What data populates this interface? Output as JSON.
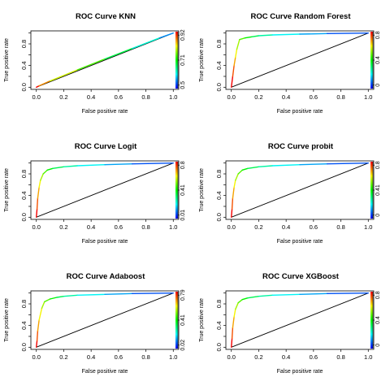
{
  "chart_data": [
    {
      "type": "line",
      "title": "ROC Curve KNN",
      "xlabel": "False positive rate",
      "ylabel": "True positive rate",
      "xlim": [
        0,
        1
      ],
      "ylim": [
        0,
        1
      ],
      "x_ticks": [
        "0.0",
        "0.2",
        "0.4",
        "0.6",
        "0.8",
        "1.0"
      ],
      "y_ticks": [
        "0.0",
        "0.4",
        "0.8"
      ],
      "colorbar_ticks": [
        "0.5",
        "0.71",
        "0.92"
      ],
      "series": [
        {
          "x": [
            0,
            0.02,
            0.1,
            0.3,
            0.5,
            0.7,
            0.9,
            1.0
          ],
          "y": [
            0,
            0.025,
            0.115,
            0.32,
            0.52,
            0.715,
            0.91,
            1.0
          ]
        }
      ]
    },
    {
      "type": "line",
      "title": "ROC Curve Random Forest",
      "xlabel": "False positive rate",
      "ylabel": "True positive rate",
      "xlim": [
        0,
        1
      ],
      "ylim": [
        0,
        1
      ],
      "x_ticks": [
        "0.0",
        "0.2",
        "0.4",
        "0.6",
        "0.8",
        "1.0"
      ],
      "y_ticks": [
        "0.0",
        "0.4",
        "0.8"
      ],
      "colorbar_ticks": [
        "0",
        "0.4",
        "0.8"
      ],
      "series": [
        {
          "x": [
            0,
            0.01,
            0.02,
            0.03,
            0.04,
            0.06,
            0.1,
            0.15,
            0.2,
            0.3,
            0.5,
            0.7,
            1.0
          ],
          "y": [
            0,
            0.2,
            0.4,
            0.55,
            0.7,
            0.88,
            0.91,
            0.93,
            0.95,
            0.965,
            0.98,
            0.99,
            1.0
          ]
        }
      ]
    },
    {
      "type": "line",
      "title": "ROC Curve Logit",
      "xlabel": "False positive rate",
      "ylabel": "True positive rate",
      "xlim": [
        0,
        1
      ],
      "ylim": [
        0,
        1
      ],
      "x_ticks": [
        "0.0",
        "0.2",
        "0.4",
        "0.6",
        "0.8",
        "1.0"
      ],
      "y_ticks": [
        "0.0",
        "0.4",
        "0.8"
      ],
      "colorbar_ticks": [
        "0.01",
        "0.41",
        "0.8"
      ],
      "series": [
        {
          "x": [
            0,
            0.005,
            0.01,
            0.02,
            0.03,
            0.05,
            0.08,
            0.12,
            0.2,
            0.3,
            0.5,
            0.7,
            1.0
          ],
          "y": [
            0,
            0.15,
            0.35,
            0.55,
            0.68,
            0.8,
            0.87,
            0.9,
            0.93,
            0.95,
            0.97,
            0.985,
            1.0
          ]
        }
      ]
    },
    {
      "type": "line",
      "title": "ROC Curve probit",
      "xlabel": "False positive rate",
      "ylabel": "True positive rate",
      "xlim": [
        0,
        1
      ],
      "ylim": [
        0,
        1
      ],
      "x_ticks": [
        "0.0",
        "0.2",
        "0.4",
        "0.6",
        "0.8",
        "1.0"
      ],
      "y_ticks": [
        "0.0",
        "0.4",
        "0.8"
      ],
      "colorbar_ticks": [
        "0",
        "0.41",
        "0.8"
      ],
      "series": [
        {
          "x": [
            0,
            0.005,
            0.01,
            0.02,
            0.03,
            0.05,
            0.08,
            0.12,
            0.2,
            0.3,
            0.5,
            0.7,
            1.0
          ],
          "y": [
            0,
            0.15,
            0.35,
            0.55,
            0.68,
            0.8,
            0.87,
            0.9,
            0.93,
            0.95,
            0.97,
            0.985,
            1.0
          ]
        }
      ]
    },
    {
      "type": "line",
      "title": "ROC Curve Adaboost",
      "xlabel": "False positive rate",
      "ylabel": "True positive rate",
      "xlim": [
        0,
        1
      ],
      "ylim": [
        0,
        1
      ],
      "x_ticks": [
        "0.0",
        "0.2",
        "0.4",
        "0.6",
        "0.8",
        "1.0"
      ],
      "y_ticks": [
        "0.0",
        "0.4",
        "0.8"
      ],
      "colorbar_ticks": [
        "0.02",
        "0.41",
        "0.79"
      ],
      "series": [
        {
          "x": [
            0,
            0.005,
            0.01,
            0.02,
            0.04,
            0.06,
            0.1,
            0.15,
            0.2,
            0.3,
            0.5,
            0.7,
            1.0
          ],
          "y": [
            0,
            0.12,
            0.3,
            0.5,
            0.72,
            0.84,
            0.89,
            0.92,
            0.94,
            0.96,
            0.975,
            0.99,
            1.0
          ]
        }
      ]
    },
    {
      "type": "line",
      "title": "ROC Curve XGBoost",
      "xlabel": "False positive rate",
      "ylabel": "True positive rate",
      "xlim": [
        0,
        1
      ],
      "ylim": [
        0,
        1
      ],
      "x_ticks": [
        "0.0",
        "0.2",
        "0.4",
        "0.6",
        "0.8",
        "1.0"
      ],
      "y_ticks": [
        "0.0",
        "0.4",
        "0.8"
      ],
      "colorbar_ticks": [
        "0",
        "0.4",
        "0.8"
      ],
      "series": [
        {
          "x": [
            0,
            0.005,
            0.01,
            0.02,
            0.03,
            0.05,
            0.08,
            0.12,
            0.2,
            0.3,
            0.5,
            0.7,
            1.0
          ],
          "y": [
            0,
            0.16,
            0.36,
            0.56,
            0.7,
            0.82,
            0.88,
            0.91,
            0.94,
            0.96,
            0.975,
            0.99,
            1.0
          ]
        }
      ]
    }
  ]
}
